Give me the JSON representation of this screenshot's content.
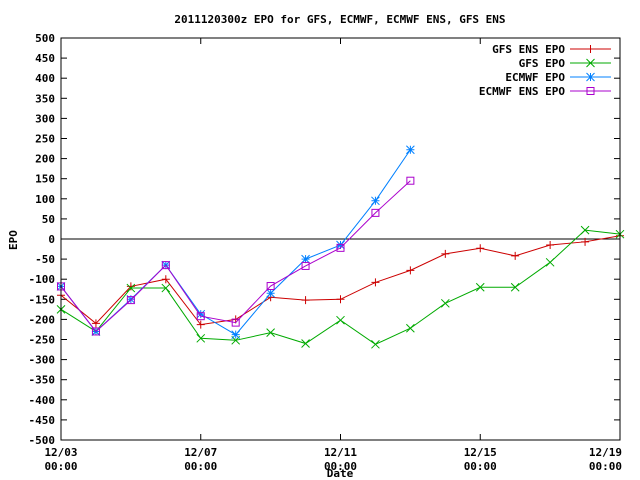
{
  "chart_data": {
    "type": "line",
    "title": "2011120300z EPO for GFS, ECMWF, ECMWF ENS, GFS ENS",
    "xlabel": "Date",
    "ylabel": "EPO",
    "x_range": [
      "2011-12-03T00:00",
      "2011-12-19T00:00"
    ],
    "ylim": [
      -500,
      500
    ],
    "y_ticks": [
      500,
      450,
      400,
      350,
      300,
      250,
      200,
      150,
      100,
      50,
      0,
      -50,
      -100,
      -150,
      -200,
      -250,
      -300,
      -350,
      -400,
      -450,
      -500
    ],
    "x_ticks": [
      {
        "date": "2011-12-03T00:00",
        "line1": "12/03",
        "line2": "00:00"
      },
      {
        "date": "2011-12-07T00:00",
        "line1": "12/07",
        "line2": "00:00"
      },
      {
        "date": "2011-12-11T00:00",
        "line1": "12/11",
        "line2": "00:00"
      },
      {
        "date": "2011-12-15T00:00",
        "line1": "12/15",
        "line2": "00:00"
      },
      {
        "date": "2011-12-19T00:00",
        "line1": "12/19",
        "line2": "00:00"
      }
    ],
    "grid": false,
    "zero_line": true,
    "legend_position": "top-right",
    "series": [
      {
        "name": "GFS ENS EPO",
        "color": "#cc0000",
        "marker": "plus",
        "x": [
          "2011-12-03T00:00",
          "2011-12-04T00:00",
          "2011-12-05T00:00",
          "2011-12-06T00:00",
          "2011-12-07T00:00",
          "2011-12-08T00:00",
          "2011-12-09T00:00",
          "2011-12-10T00:00",
          "2011-12-11T00:00",
          "2011-12-12T00:00",
          "2011-12-13T00:00",
          "2011-12-14T00:00",
          "2011-12-15T00:00",
          "2011-12-16T00:00",
          "2011-12-17T00:00",
          "2011-12-18T00:00",
          "2011-12-19T00:00"
        ],
        "y": [
          -140,
          -210,
          -118,
          -100,
          -213,
          -200,
          -145,
          -152,
          -150,
          -108,
          -78,
          -37,
          -23,
          -42,
          -15,
          -7,
          8
        ]
      },
      {
        "name": "GFS EPO",
        "color": "#00aa00",
        "marker": "cross",
        "x": [
          "2011-12-03T00:00",
          "2011-12-04T00:00",
          "2011-12-05T00:00",
          "2011-12-06T00:00",
          "2011-12-07T00:00",
          "2011-12-08T00:00",
          "2011-12-09T00:00",
          "2011-12-10T00:00",
          "2011-12-11T00:00",
          "2011-12-12T00:00",
          "2011-12-13T00:00",
          "2011-12-14T00:00",
          "2011-12-15T00:00",
          "2011-12-16T00:00",
          "2011-12-17T00:00",
          "2011-12-18T00:00",
          "2011-12-19T00:00"
        ],
        "y": [
          -175,
          -230,
          -122,
          -122,
          -247,
          -252,
          -233,
          -260,
          -202,
          -262,
          -222,
          -160,
          -120,
          -120,
          -58,
          22,
          12
        ]
      },
      {
        "name": "ECMWF EPO",
        "color": "#0080ff",
        "marker": "star",
        "x": [
          "2011-12-03T00:00",
          "2011-12-04T00:00",
          "2011-12-05T00:00",
          "2011-12-06T00:00",
          "2011-12-07T00:00",
          "2011-12-08T00:00",
          "2011-12-09T00:00",
          "2011-12-10T00:00",
          "2011-12-11T00:00",
          "2011-12-12T00:00",
          "2011-12-13T00:00"
        ],
        "y": [
          -118,
          -230,
          -150,
          -65,
          -187,
          -238,
          -135,
          -50,
          -15,
          95,
          222
        ]
      },
      {
        "name": "ECMWF ENS EPO",
        "color": "#aa00cc",
        "marker": "square",
        "x": [
          "2011-12-03T00:00",
          "2011-12-04T00:00",
          "2011-12-05T00:00",
          "2011-12-06T00:00",
          "2011-12-07T00:00",
          "2011-12-08T00:00",
          "2011-12-09T00:00",
          "2011-12-10T00:00",
          "2011-12-11T00:00",
          "2011-12-12T00:00",
          "2011-12-13T00:00"
        ],
        "y": [
          -118,
          -230,
          -152,
          -65,
          -192,
          -208,
          -117,
          -67,
          -22,
          65,
          145
        ]
      }
    ]
  }
}
